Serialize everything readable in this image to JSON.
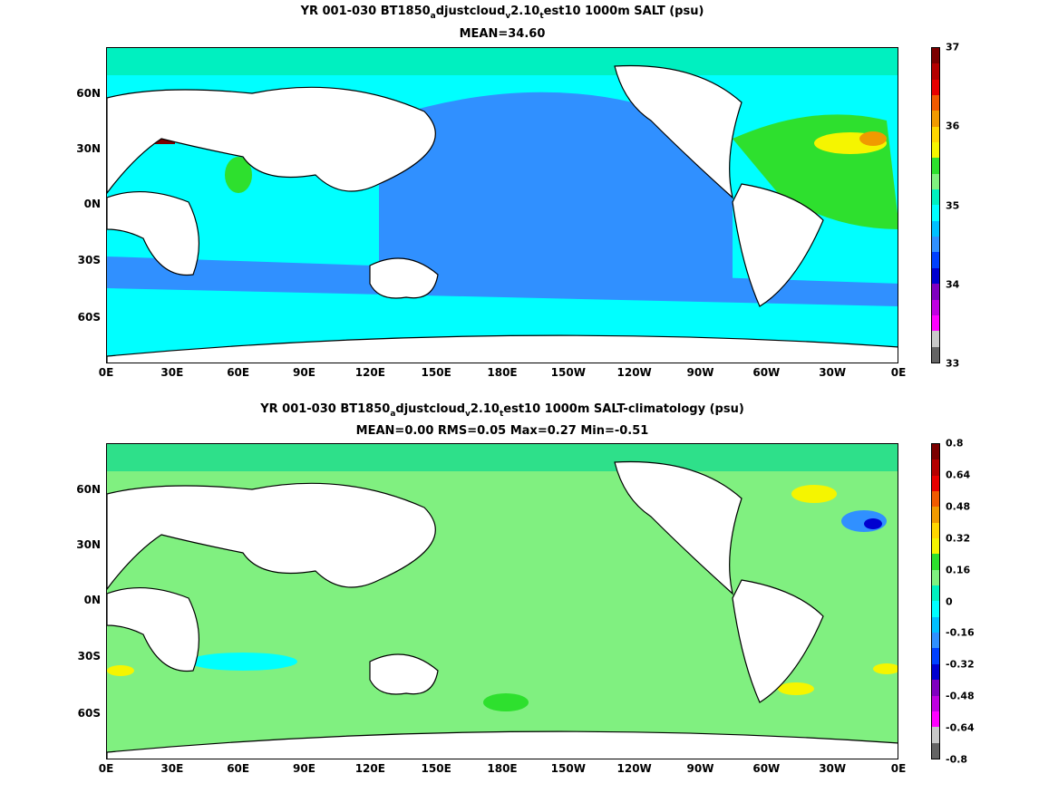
{
  "map1": {
    "title_pre": "YR 001-030 BT1850",
    "title_sub1": "a",
    "title_mid": "djustcloud",
    "title_sub2": "v",
    "title_mid2": "2.10",
    "title_sub3": "t",
    "title_post": "est10 1000m SALT (psu)",
    "stats": "MEAN=34.60",
    "colorbar": {
      "labels": [
        "37",
        "36",
        "35",
        "34",
        "33"
      ],
      "colors": [
        "#7b0000",
        "#b40000",
        "#e80000",
        "#f05a00",
        "#f09a00",
        "#ffd700",
        "#f5f500",
        "#2ee02e",
        "#80f080",
        "#00f0c0",
        "#00ffff",
        "#00c0ff",
        "#3090ff",
        "#0040ff",
        "#0000d0",
        "#8000c0",
        "#c000e0",
        "#ff00ff",
        "#c8c8c8",
        "#646464"
      ]
    }
  },
  "map2": {
    "title_pre": "YR 001-030 BT1850",
    "title_sub1": "a",
    "title_mid": "djustcloud",
    "title_sub2": "v",
    "title_mid2": "2.10",
    "title_sub3": "t",
    "title_post": "est10 1000m SALT-climatology (psu)",
    "stats": "MEAN=0.00   RMS=0.05   Max=0.27   Min=-0.51",
    "colorbar": {
      "labels": [
        "0.8",
        "0.64",
        "0.48",
        "0.32",
        "0.16",
        "0",
        "-0.16",
        "-0.32",
        "-0.48",
        "-0.64",
        "-0.8"
      ],
      "colors": [
        "#7b0000",
        "#b40000",
        "#e80000",
        "#f05a00",
        "#f09a00",
        "#ffd700",
        "#f5f500",
        "#2ee02e",
        "#80f080",
        "#00f0c0",
        "#00ffff",
        "#00c0ff",
        "#3090ff",
        "#0040ff",
        "#0000d0",
        "#8000c0",
        "#c000e0",
        "#ff00ff",
        "#c8c8c8",
        "#646464"
      ]
    }
  },
  "x_ticks": [
    "0E",
    "30E",
    "60E",
    "90E",
    "120E",
    "150E",
    "180E",
    "150W",
    "120W",
    "90W",
    "60W",
    "30W",
    "0E"
  ],
  "y_ticks": [
    "60N",
    "30N",
    "0N",
    "30S",
    "60S"
  ],
  "colors": {
    "land": "#ffffff",
    "coast": "#000000",
    "map1_ocean": "#00ffff",
    "map1_pacific": "#3090ff",
    "map1_atlantic": "#2ee02e",
    "map2_ocean": "#80f080",
    "map2_arctic": "#2ee08a"
  }
}
